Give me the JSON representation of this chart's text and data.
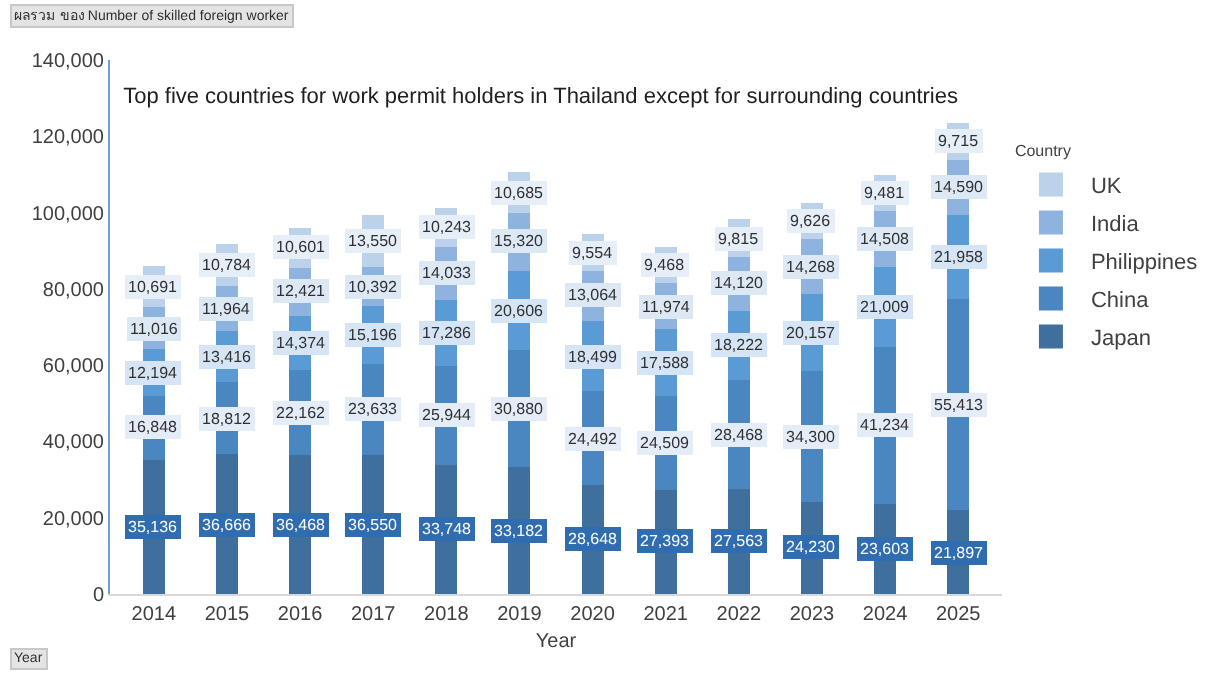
{
  "chart_data": {
    "type": "bar",
    "stacked": true,
    "title": "Top five countries for work permit holders in Thailand except for surrounding countries",
    "xlabel": "Year",
    "legend_title": "Country",
    "legend": "right",
    "grid": false,
    "annotations": [
      "ผลรวม ของ Number of skilled foreign worker",
      "Year"
    ],
    "categories": [
      "2014",
      "2015",
      "2016",
      "2017",
      "2018",
      "2019",
      "2020",
      "2021",
      "2022",
      "2023",
      "2024",
      "2025"
    ],
    "ylim": [
      0,
      140000
    ],
    "yticks": [
      {
        "value": 0,
        "label": "0"
      },
      {
        "value": 20000,
        "label": "20,000"
      },
      {
        "value": 40000,
        "label": "40,000"
      },
      {
        "value": 60000,
        "label": "60,000"
      },
      {
        "value": 80000,
        "label": "80,000"
      },
      {
        "value": 100000,
        "label": "100,000"
      },
      {
        "value": 120000,
        "label": "120,000"
      },
      {
        "value": 140000,
        "label": "140,000"
      }
    ],
    "series": [
      {
        "name": "Japan",
        "color": "#3f6f9d",
        "values": [
          35136,
          36666,
          36468,
          36550,
          33748,
          33182,
          28648,
          27393,
          27563,
          24230,
          23603,
          21897
        ],
        "value_labels": [
          "35,136",
          "36,666",
          "36,468",
          "36,550",
          "33,748",
          "33,182",
          "28,648",
          "27,393",
          "27,563",
          "24,230",
          "23,603",
          "21,897"
        ]
      },
      {
        "name": "China",
        "color": "#4a86bf",
        "values": [
          16848,
          18812,
          22162,
          23633,
          25944,
          30880,
          24492,
          24509,
          28468,
          34300,
          41234,
          55413
        ],
        "value_labels": [
          "16,848",
          "18,812",
          "22,162",
          "23,633",
          "25,944",
          "30,880",
          "24,492",
          "24,509",
          "28,468",
          "34,300",
          "41,234",
          "55,413"
        ]
      },
      {
        "name": "Philippines",
        "color": "#5b9bd5",
        "values": [
          12194,
          13416,
          14374,
          15196,
          17286,
          20606,
          18499,
          17588,
          18222,
          20157,
          21009,
          21958
        ],
        "value_labels": [
          "12,194",
          "13,416",
          "14,374",
          "15,196",
          "17,286",
          "20,606",
          "18,499",
          "17,588",
          "18,222",
          "20,157",
          "21,009",
          "21,958"
        ]
      },
      {
        "name": "India",
        "color": "#8eb3de",
        "values": [
          11016,
          11964,
          12421,
          10392,
          14033,
          15320,
          13064,
          11974,
          14120,
          14268,
          14508,
          14590
        ],
        "value_labels": [
          "11,016",
          "11,964",
          "12,421",
          "10,392",
          "14,033",
          "15,320",
          "13,064",
          "11,974",
          "14,120",
          "14,268",
          "14,508",
          "14,590"
        ]
      },
      {
        "name": "UK",
        "color": "#bcd2eb",
        "values": [
          10691,
          10784,
          10601,
          13550,
          10243,
          10685,
          9554,
          9468,
          9815,
          9626,
          9481,
          9715
        ],
        "value_labels": [
          "10,691",
          "10,784",
          "10,601",
          "13,550",
          "10,243",
          "10,685",
          "9,554",
          "9,468",
          "9,815",
          "9,626",
          "9,481",
          "9,715"
        ]
      }
    ]
  }
}
